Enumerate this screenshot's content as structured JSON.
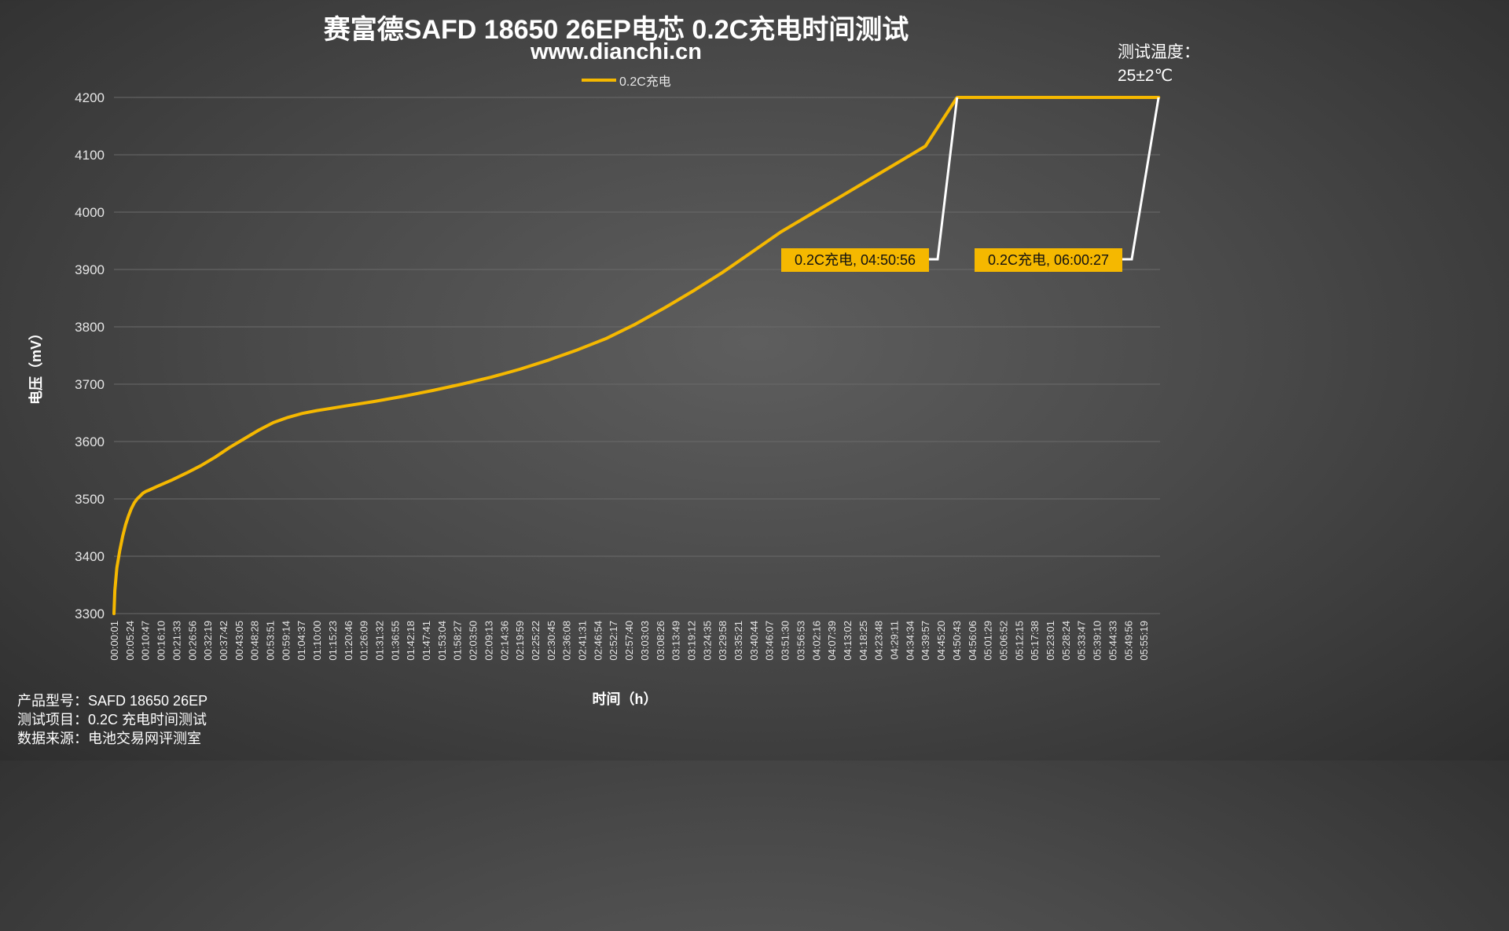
{
  "chart_data": {
    "type": "line",
    "title": "赛富德SAFD 18650 26EP电芯 0.2C充电时间测试",
    "subtitle": "www.dianchi.cn",
    "xlabel": "时间（h）",
    "ylabel": "电压（mV）",
    "ylim": [
      3300,
      4200
    ],
    "yticks": [
      3300,
      3400,
      3500,
      3600,
      3700,
      3800,
      3900,
      4000,
      4100,
      4200
    ],
    "grid": true,
    "legend_position": "top",
    "x_tick_labels": [
      "00:00:01",
      "00:05:24",
      "00:10:47",
      "00:16:10",
      "00:21:33",
      "00:26:56",
      "00:32:19",
      "00:37:42",
      "00:43:05",
      "00:48:28",
      "00:53:51",
      "00:59:14",
      "01:04:37",
      "01:10:00",
      "01:15:23",
      "01:20:46",
      "01:26:09",
      "01:31:32",
      "01:36:55",
      "01:42:18",
      "01:47:41",
      "01:53:04",
      "01:58:27",
      "02:03:50",
      "02:09:13",
      "02:14:36",
      "02:19:59",
      "02:25:22",
      "02:30:45",
      "02:36:08",
      "02:41:31",
      "02:46:54",
      "02:52:17",
      "02:57:40",
      "03:03:03",
      "03:08:26",
      "03:13:49",
      "03:19:12",
      "03:24:35",
      "03:29:58",
      "03:35:21",
      "03:40:44",
      "03:46:07",
      "03:51:30",
      "03:56:53",
      "04:02:16",
      "04:07:39",
      "04:13:02",
      "04:18:25",
      "04:23:48",
      "04:29:11",
      "04:34:34",
      "04:39:57",
      "04:45:20",
      "04:50:43",
      "04:56:06",
      "05:01:29",
      "05:06:52",
      "05:12:15",
      "05:17:38",
      "05:23:01",
      "05:28:24",
      "05:33:47",
      "05:39:10",
      "05:44:33",
      "05:49:56",
      "05:55:19"
    ],
    "series": [
      {
        "name": "0.2C充电",
        "color": "#f5b800",
        "x_minutes": [
          0,
          0.3,
          1,
          2,
          3,
          4,
          5,
          6,
          7,
          8,
          9,
          10,
          11,
          12,
          15,
          20,
          25,
          30,
          35,
          40,
          45,
          50,
          55,
          60,
          65,
          70,
          75,
          80,
          90,
          100,
          110,
          120,
          130,
          140,
          150,
          160,
          170,
          180,
          190,
          200,
          210,
          220,
          230,
          240,
          250,
          260,
          270,
          280,
          290.93,
          300,
          320,
          340,
          360.45
        ],
        "y": [
          3300,
          3340,
          3380,
          3410,
          3435,
          3455,
          3470,
          3483,
          3493,
          3500,
          3505,
          3510,
          3513,
          3515,
          3522,
          3533,
          3545,
          3558,
          3573,
          3590,
          3605,
          3620,
          3633,
          3642,
          3649,
          3654,
          3658,
          3662,
          3670,
          3679,
          3689,
          3700,
          3712,
          3726,
          3742,
          3760,
          3780,
          3805,
          3833,
          3863,
          3895,
          3930,
          3965,
          3995,
          4025,
          4055,
          4085,
          4115,
          4200,
          4200,
          4200,
          4200,
          4200
        ]
      }
    ],
    "annotations": [
      {
        "text": "0.2C充电, 04:50:56",
        "time_minutes": 290.93,
        "value": 4200
      },
      {
        "text": "0.2C充电, 06:00:27",
        "time_minutes": 360.45,
        "value": 4200
      }
    ],
    "temperature_note": [
      "测试温度：",
      "25±2℃"
    ]
  },
  "info": {
    "model": "产品型号：SAFD 18650 26EP",
    "test_item": "测试项目：0.2C 充电时间测试",
    "source": "数据来源：电池交易网评测室"
  },
  "colors": {
    "line": "#f5b800",
    "grid": "#6a6a6a",
    "label_box": "#f5b800",
    "leader": "#ffffff"
  }
}
